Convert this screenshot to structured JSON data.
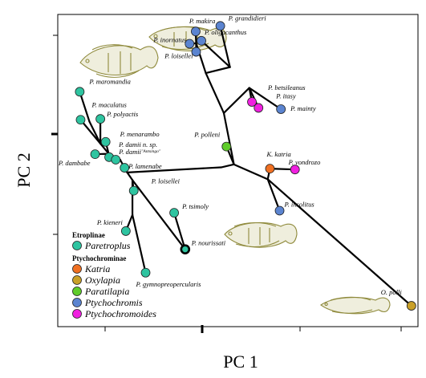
{
  "chart_data": {
    "type": "scatter",
    "title": "",
    "xlabel": "PC 1",
    "ylabel": "PC 2",
    "xlim": [
      -4.6,
      3.6
    ],
    "ylim": [
      -3.75,
      3.6
    ],
    "colors": {
      "Paretroplus": "#2ec4a0",
      "Katria": "#f07022",
      "Oxylapia": "#c9a028",
      "Paratilapia": "#5fcc2a",
      "Ptychochromis": "#5b84d0",
      "Ptychochromoides": "#f020e0"
    },
    "legend": {
      "placement": "bottom-left",
      "groups": [
        {
          "title": "Etroplinae",
          "items": [
            {
              "name": "Paretroplus",
              "key": "Paretroplus"
            }
          ]
        },
        {
          "title": "Ptychochrominae",
          "items": [
            {
              "name": "Katria",
              "key": "Katria"
            },
            {
              "name": "Oxylapia",
              "key": "Oxylapia"
            },
            {
              "name": "Paratilapia",
              "key": "Paratilapia"
            },
            {
              "name": "Ptychochromis",
              "key": "Ptychochromis"
            },
            {
              "name": "Ptychochromoides",
              "key": "Ptychochromoides"
            }
          ]
        }
      ]
    },
    "points": [
      {
        "id": "maromandia",
        "label": "P. maromandia",
        "group": "Paretroplus",
        "x": -4.1,
        "y": 1.78
      },
      {
        "id": "maculatus",
        "label": "P. maculatus",
        "group": "Paretroplus",
        "x": -4.08,
        "y": 1.12
      },
      {
        "id": "polyactis",
        "label": "P. polyactis",
        "group": "Paretroplus",
        "x": -3.63,
        "y": 1.14
      },
      {
        "id": "dambabe",
        "label": "P. dambabe",
        "group": "Paretroplus",
        "x": -3.75,
        "y": 0.31
      },
      {
        "id": "menarambo",
        "label": "P. menarambo",
        "group": "Paretroplus",
        "x": -3.51,
        "y": 0.6
      },
      {
        "id": "damiinsp",
        "label": "P. damii n. sp.",
        "sublabel": "\"Antsingo\"",
        "group": "Paretroplus",
        "x": -3.43,
        "y": 0.24
      },
      {
        "id": "damii",
        "label": "P. damii",
        "group": "Paretroplus",
        "x": -3.28,
        "y": 0.18
      },
      {
        "id": "lamenabe",
        "label": "P. lamenabe",
        "group": "Paretroplus",
        "x": -3.08,
        "y": -0.01
      },
      {
        "id": "loisellei_p",
        "label": "P. loisellei",
        "group": "Paretroplus",
        "x": -2.87,
        "y": -0.55
      },
      {
        "id": "tsimoly",
        "label": "P. tsimoly",
        "group": "Paretroplus",
        "x": -1.95,
        "y": -1.07
      },
      {
        "id": "kieneri",
        "label": "P. kieneri",
        "group": "Paretroplus",
        "x": -3.05,
        "y": -1.5
      },
      {
        "id": "nourissati",
        "label": "P. nourissati",
        "group": "Paretroplus",
        "x": -1.7,
        "y": -1.93,
        "ring": true
      },
      {
        "id": "gymno",
        "label": "P. gymnopreopercularis",
        "group": "Paretroplus",
        "x": -2.6,
        "y": -2.48
      },
      {
        "id": "makira",
        "label": "P. makira",
        "group": "Ptychochromis",
        "x": -1.46,
        "y": 3.2
      },
      {
        "id": "grandidieri",
        "label": "P. grandidieri",
        "group": "Ptychochromis",
        "x": -0.9,
        "y": 3.33
      },
      {
        "id": "oligacanthus",
        "label": "P. oligacanthus",
        "group": "Ptychochromis",
        "x": -1.33,
        "y": 2.98
      },
      {
        "id": "inornatus",
        "label": "P. inornatus",
        "group": "Ptychochromis",
        "x": -1.6,
        "y": 2.91
      },
      {
        "id": "loisellei_c",
        "label": "P. loisellei",
        "group": "Ptychochromis",
        "x": -1.45,
        "y": 2.72
      },
      {
        "id": "betsileanus",
        "label": "P. betsileanus",
        "group": "Ptychochromoides",
        "x": -0.18,
        "y": 1.54
      },
      {
        "id": "itasy",
        "label": "P. itasy",
        "group": "Ptychochromoides",
        "x": -0.03,
        "y": 1.4
      },
      {
        "id": "mainty",
        "label": "P. mainty",
        "group": "Ptychochromis",
        "x": 0.48,
        "y": 1.37
      },
      {
        "id": "polleni",
        "label": "P. polleni",
        "group": "Paratilapia",
        "x": -0.76,
        "y": 0.49
      },
      {
        "id": "katria",
        "label": "K. katria",
        "group": "Katria",
        "x": 0.23,
        "y": -0.03
      },
      {
        "id": "vondrozo",
        "label": "P. vondrozo",
        "group": "Ptychochromoides",
        "x": 0.8,
        "y": -0.05
      },
      {
        "id": "insolitus",
        "label": "P. insolitus",
        "group": "Ptychochromis",
        "x": 0.45,
        "y": -1.02
      },
      {
        "id": "polli",
        "label": "O. polli",
        "group": "Oxylapia",
        "x": 3.45,
        "y": -3.26
      }
    ],
    "tree": {
      "nodes": [
        {
          "id": "n1",
          "x": -3.88,
          "y": 1.08
        },
        {
          "id": "n2",
          "x": -3.63,
          "y": 0.56
        },
        {
          "id": "n3",
          "x": -3.44,
          "y": 0.32
        },
        {
          "id": "n4",
          "x": -3.18,
          "y": 0.18
        },
        {
          "id": "n5",
          "x": -3.02,
          "y": -0.12
        },
        {
          "id": "n6",
          "x": -2.9,
          "y": -0.3
        },
        {
          "id": "n7",
          "x": -2.9,
          "y": -1.12
        },
        {
          "id": "n8",
          "x": -0.88,
          "y": 0.0
        },
        {
          "id": "n9",
          "x": -0.59,
          "y": 0.07
        },
        {
          "id": "n10",
          "x": -0.82,
          "y": 1.28
        },
        {
          "id": "n11",
          "x": -1.23,
          "y": 2.22
        },
        {
          "id": "n12",
          "x": -0.68,
          "y": 2.36
        },
        {
          "id": "n13",
          "x": -1.45,
          "y": 2.92
        },
        {
          "id": "n14",
          "x": -0.24,
          "y": 1.87
        },
        {
          "id": "n15",
          "x": 0.18,
          "y": -0.28
        }
      ],
      "edges": [
        [
          "maromandia",
          "n1"
        ],
        [
          "maculatus",
          "n2"
        ],
        [
          "n1",
          "n2"
        ],
        [
          "polyactis",
          "n2"
        ],
        [
          "n2",
          "n3"
        ],
        [
          "dambabe",
          "n3"
        ],
        [
          "menarambo",
          "n3"
        ],
        [
          "n3",
          "n4"
        ],
        [
          "damiinsp",
          "n4"
        ],
        [
          "damii",
          "n4"
        ],
        [
          "n4",
          "n5"
        ],
        [
          "lamenabe",
          "n5"
        ],
        [
          "n5",
          "n6"
        ],
        [
          "loisellei_p",
          "n6"
        ],
        [
          "n6",
          "n7"
        ],
        [
          "n7",
          "kieneri"
        ],
        [
          "n7",
          "gymno"
        ],
        [
          "n6",
          "nourissati"
        ],
        [
          "nourissati",
          "tsimoly"
        ],
        [
          "n5",
          "n8"
        ],
        [
          "n8",
          "n9"
        ],
        [
          "n9",
          "polleni"
        ],
        [
          "n9",
          "n10"
        ],
        [
          "n10",
          "n11"
        ],
        [
          "n11",
          "n13"
        ],
        [
          "n13",
          "makira"
        ],
        [
          "n13",
          "inornatus"
        ],
        [
          "n13",
          "loisellei_c"
        ],
        [
          "n11",
          "n12"
        ],
        [
          "n12",
          "grandidieri"
        ],
        [
          "n12",
          "oligacanthus"
        ],
        [
          "n10",
          "n14"
        ],
        [
          "n14",
          "betsileanus"
        ],
        [
          "n14",
          "itasy"
        ],
        [
          "n14",
          "mainty"
        ],
        [
          "n9",
          "n15"
        ],
        [
          "n15",
          "katria"
        ],
        [
          "n15",
          "insolitus"
        ],
        [
          "n15",
          "polli"
        ],
        [
          "katria",
          "vondrozo"
        ]
      ]
    }
  }
}
